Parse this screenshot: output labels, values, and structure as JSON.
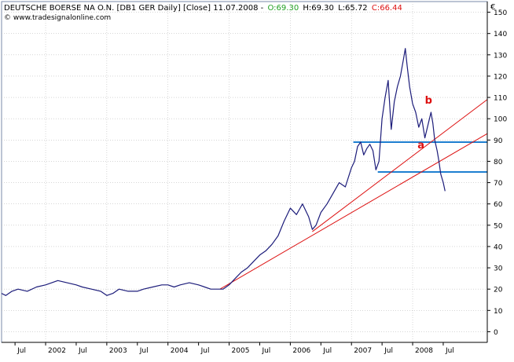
{
  "header": {
    "instrument": "DEUTSCHE BOERSE NA O.N. [DB1 GER Daily] [Close] 11.07.2008 -",
    "open": "O:69.30",
    "high": "H:69.30",
    "low": "L:65.72",
    "close": "C:66.44",
    "copyright": "© www.tradesignalonline.com"
  },
  "colors": {
    "price": "#1c1c7a",
    "trend": "#dd1111",
    "levels": "#1e7fd0",
    "open": "#22a022",
    "close": "#dd1111",
    "grid": "#bdbdbd",
    "axis": "#000000",
    "plot_border": "#7a8aa8"
  },
  "chart_data": {
    "type": "line",
    "currency_label": "€",
    "ylim": [
      -5,
      155
    ],
    "yticks": [
      0,
      10,
      20,
      30,
      40,
      50,
      60,
      70,
      80,
      90,
      100,
      110,
      120,
      130,
      140,
      150
    ],
    "xlim": [
      2001.28,
      2009.22
    ],
    "xticks": [
      {
        "x": 2001.5,
        "label": "Jul"
      },
      {
        "x": 2002.0,
        "label": "2002"
      },
      {
        "x": 2002.5,
        "label": "Jul"
      },
      {
        "x": 2003.0,
        "label": "2003"
      },
      {
        "x": 2003.5,
        "label": "Jul"
      },
      {
        "x": 2004.0,
        "label": "2004"
      },
      {
        "x": 2004.5,
        "label": "Jul"
      },
      {
        "x": 2005.0,
        "label": "2005"
      },
      {
        "x": 2005.5,
        "label": "Jul"
      },
      {
        "x": 2006.0,
        "label": "2006"
      },
      {
        "x": 2006.5,
        "label": "Jul"
      },
      {
        "x": 2007.0,
        "label": "2007"
      },
      {
        "x": 2007.5,
        "label": "Jul"
      },
      {
        "x": 2008.0,
        "label": "2008"
      },
      {
        "x": 2008.5,
        "label": "Jul"
      }
    ],
    "series": [
      {
        "x": [
          2001.28,
          2001.35,
          2001.45,
          2001.55,
          2001.7,
          2001.85,
          2002.0,
          2002.1,
          2002.2,
          2002.35,
          2002.5,
          2002.6,
          2002.75,
          2002.9,
          2003.0,
          2003.1,
          2003.2,
          2003.35,
          2003.5,
          2003.6,
          2003.75,
          2003.9,
          2004.0,
          2004.1,
          2004.2,
          2004.35,
          2004.5,
          2004.6,
          2004.7,
          2004.8,
          2004.9,
          2005.0,
          2005.1,
          2005.2,
          2005.3,
          2005.4,
          2005.5,
          2005.6,
          2005.7,
          2005.8,
          2005.9,
          2006.0,
          2006.1,
          2006.2,
          2006.3,
          2006.36,
          2006.42,
          2006.5,
          2006.6,
          2006.7,
          2006.8,
          2006.9,
          2007.0,
          2007.05,
          2007.1,
          2007.15,
          2007.2,
          2007.25,
          2007.3,
          2007.35,
          2007.4,
          2007.45,
          2007.5,
          2007.55,
          2007.6,
          2007.65,
          2007.7,
          2007.75,
          2007.8,
          2007.85,
          2007.88,
          2007.91,
          2007.95,
          2008.0,
          2008.05,
          2008.1,
          2008.15,
          2008.2,
          2008.25,
          2008.3,
          2008.33,
          2008.36,
          2008.4,
          2008.43,
          2008.46,
          2008.5,
          2008.53
        ],
        "y": [
          18,
          17,
          19,
          20,
          19,
          21,
          22,
          23,
          24,
          23,
          22,
          21,
          20,
          19,
          17,
          18,
          20,
          19,
          19,
          20,
          21,
          22,
          22,
          21,
          22,
          23,
          22,
          21,
          20,
          20,
          20,
          22,
          25,
          28,
          30,
          33,
          36,
          38,
          41,
          45,
          52,
          58,
          55,
          60,
          54,
          48,
          50,
          56,
          60,
          65,
          70,
          68,
          77,
          80,
          87,
          89,
          83,
          86,
          88,
          85,
          76,
          80,
          100,
          110,
          118,
          95,
          108,
          115,
          120,
          128,
          133,
          125,
          115,
          107,
          103,
          96,
          100,
          91,
          97,
          103,
          98,
          90,
          85,
          80,
          74,
          70,
          66
        ]
      }
    ],
    "trendlines": [
      {
        "x": [
          2004.85,
          2009.22
        ],
        "y": [
          20,
          93
        ]
      },
      {
        "x": [
          2006.36,
          2009.22
        ],
        "y": [
          47,
          109
        ]
      }
    ],
    "horizontal_levels": [
      {
        "y": 89,
        "x_start": 2007.03
      },
      {
        "y": 75,
        "x_start": 2007.43
      }
    ],
    "annotations": [
      {
        "text": "b",
        "x": 2008.2,
        "y": 107
      },
      {
        "text": "a",
        "x": 2008.08,
        "y": 86
      }
    ]
  }
}
